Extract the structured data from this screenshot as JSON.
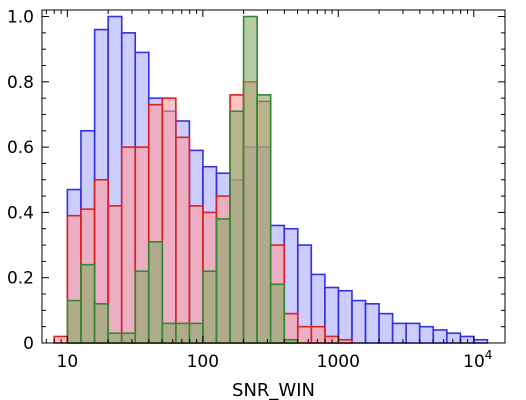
{
  "chart_data": {
    "type": "histogram",
    "xlabel": "SNR_WIN",
    "ylabel": "",
    "x_scale": "log",
    "xlim": [
      6.5,
      17000
    ],
    "ylim": [
      0,
      1.02
    ],
    "x_tick_labels": [
      "10",
      "100",
      "1000",
      "10^4"
    ],
    "y_tick_labels": [
      "0",
      "0.2",
      "0.4",
      "0.6",
      "0.8",
      "1.0"
    ],
    "y_ticks": [
      0,
      0.2,
      0.4,
      0.6,
      0.8,
      1.0
    ],
    "x_ticks": [
      10,
      100,
      1000,
      10000
    ],
    "series": [
      {
        "color": "#3333dd",
        "fill": "#aaaaff",
        "bin_edges": [
          8.0,
          10.0,
          12.6,
          15.9,
          20.0,
          25.2,
          31.7,
          39.9,
          50.2,
          63.2,
          79.6,
          100.2,
          126.1,
          158.8,
          199.9,
          251.7,
          316.9,
          398.9,
          502.2,
          632.2,
          795.9,
          1002.0,
          1261.4,
          1588.0,
          1999.2,
          2516.8,
          3168.5,
          3988.9,
          5021.7,
          6321.9,
          7958.9,
          10019.6,
          12613.8
        ],
        "values": [
          0.0,
          0.47,
          0.65,
          0.96,
          1.0,
          0.95,
          0.89,
          0.75,
          0.71,
          0.68,
          0.59,
          0.54,
          0.52,
          0.5,
          0.6,
          0.6,
          0.36,
          0.35,
          0.3,
          0.21,
          0.17,
          0.16,
          0.13,
          0.12,
          0.09,
          0.06,
          0.06,
          0.05,
          0.04,
          0.03,
          0.02,
          0.01
        ]
      },
      {
        "color": "#dd2222",
        "fill": "#ff9999",
        "bin_edges": [
          8.0,
          10.0,
          12.6,
          15.9,
          20.0,
          25.2,
          31.7,
          39.9,
          50.2,
          63.2,
          79.6,
          100.2,
          126.1,
          158.8,
          199.9,
          251.7,
          316.9,
          398.9,
          502.2,
          632.2,
          795.9,
          1002.0,
          1261.4,
          1588.0
        ],
        "values": [
          0.02,
          0.39,
          0.41,
          0.5,
          0.42,
          0.6,
          0.6,
          0.73,
          0.75,
          0.63,
          0.42,
          0.4,
          0.45,
          0.76,
          0.8,
          0.74,
          0.3,
          0.09,
          0.05,
          0.05,
          0.02,
          0.01,
          0.0
        ]
      },
      {
        "color": "#338833",
        "fill": "#88aa66",
        "bin_edges": [
          8.0,
          10.0,
          12.6,
          15.9,
          20.0,
          25.2,
          31.7,
          39.9,
          50.2,
          63.2,
          79.6,
          100.2,
          126.1,
          158.8,
          199.9,
          251.7,
          316.9,
          398.9,
          502.2,
          632.2,
          795.9
        ],
        "values": [
          0.0,
          0.13,
          0.24,
          0.12,
          0.03,
          0.03,
          0.22,
          0.31,
          0.06,
          0.06,
          0.06,
          0.22,
          0.38,
          0.71,
          1.0,
          0.76,
          0.18,
          0.01,
          0.0,
          0.0
        ]
      }
    ]
  }
}
